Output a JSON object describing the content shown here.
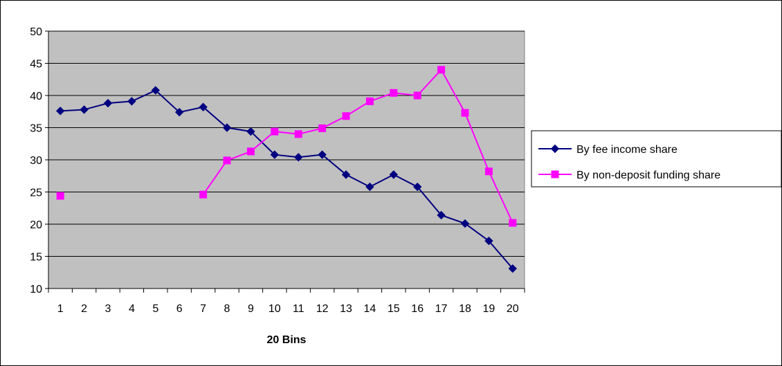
{
  "chart_data": {
    "type": "line",
    "title": "",
    "xlabel": "20 Bins",
    "ylabel": "",
    "x": [
      1,
      2,
      3,
      4,
      5,
      6,
      7,
      8,
      9,
      10,
      11,
      12,
      13,
      14,
      15,
      16,
      17,
      18,
      19,
      20
    ],
    "x_tick_labels": [
      "1",
      "2",
      "3",
      "4",
      "5",
      "6",
      "7",
      "8",
      "9",
      "10",
      "11",
      "12",
      "13",
      "14",
      "15",
      "16",
      "17",
      "18",
      "19",
      "20"
    ],
    "ylim": [
      10,
      50
    ],
    "y_ticks": [
      10,
      15,
      20,
      25,
      30,
      35,
      40,
      45,
      50
    ],
    "y_tick_labels": [
      "10",
      "15",
      "20",
      "25",
      "30",
      "35",
      "40",
      "45",
      "50"
    ],
    "grid": "horizontal",
    "plot_background": "#C0C0C0",
    "legend_position": "right",
    "series": [
      {
        "name": "By fee income share",
        "color": "#000080",
        "marker": "diamond",
        "values": [
          37.6,
          37.8,
          38.8,
          39.1,
          40.8,
          37.4,
          38.2,
          35.0,
          34.4,
          30.8,
          30.4,
          30.8,
          27.7,
          25.8,
          27.7,
          25.8,
          21.4,
          20.1,
          17.4,
          13.1
        ]
      },
      {
        "name": "By non-deposit funding share",
        "color": "#FF00FF",
        "marker": "square",
        "values": [
          24.4,
          null,
          null,
          null,
          null,
          null,
          24.6,
          29.9,
          31.3,
          34.4,
          34.0,
          34.9,
          36.8,
          39.1,
          40.4,
          40.0,
          44.0,
          37.3,
          28.2,
          20.2
        ]
      }
    ]
  }
}
